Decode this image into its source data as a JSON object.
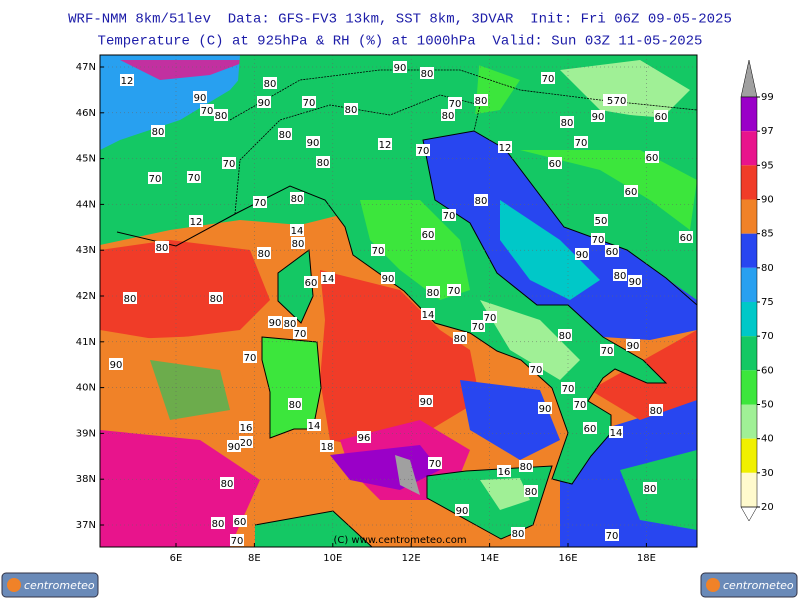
{
  "header": {
    "line1": "WRF-NMM 8km/51lev  Data: GFS-FV3 13km, SST 8km, 3DVAR  Init: Fri 06Z 09-05-2025",
    "line2": "Temperature (C) at 925hPa & RH (%) at 1000hPa  Valid: Sun 03Z 11-05-2025"
  },
  "map": {
    "lat_ticks": [
      {
        "value": 47,
        "label": "47N"
      },
      {
        "value": 46,
        "label": "46N"
      },
      {
        "value": 45,
        "label": "45N"
      },
      {
        "value": 44,
        "label": "44N"
      },
      {
        "value": 43,
        "label": "43N"
      },
      {
        "value": 42,
        "label": "42N"
      },
      {
        "value": 41,
        "label": "41N"
      },
      {
        "value": 40,
        "label": "40N"
      },
      {
        "value": 39,
        "label": "39N"
      },
      {
        "value": 38,
        "label": "38N"
      },
      {
        "value": 37,
        "label": "37N"
      }
    ],
    "lon_ticks": [
      {
        "value": 6,
        "label": "6E"
      },
      {
        "value": 8,
        "label": "8E"
      },
      {
        "value": 10,
        "label": "10E"
      },
      {
        "value": 12,
        "label": "12E"
      },
      {
        "value": 14,
        "label": "14E"
      },
      {
        "value": 16,
        "label": "16E"
      },
      {
        "value": 18,
        "label": "18E"
      }
    ],
    "contour_labels": [
      "12",
      "80",
      "90",
      "80",
      "70",
      "90",
      "70",
      "80",
      "90",
      "70",
      "80",
      "70",
      "80",
      "5",
      "70",
      "80",
      "80",
      "90",
      "12",
      "80",
      "80",
      "90",
      "60",
      "70",
      "12",
      "70",
      "80",
      "60",
      "70",
      "60",
      "70",
      "70",
      "80",
      "70",
      "80",
      "60",
      "12",
      "70",
      "50",
      "14",
      "60",
      "80",
      "80",
      "70",
      "70",
      "60",
      "90",
      "60",
      "80",
      "14",
      "60",
      "90",
      "80",
      "90",
      "80",
      "80",
      "80",
      "70",
      "14",
      "90",
      "80",
      "70",
      "70",
      "70",
      "80",
      "80",
      "90",
      "70",
      "90",
      "70",
      "70",
      "70",
      "90",
      "80",
      "90",
      "70",
      "80",
      "16",
      "14",
      "60",
      "14",
      "20",
      "96",
      "90",
      "18",
      "70",
      "80",
      "16",
      "80",
      "80",
      "80",
      "80",
      "60",
      "90",
      "70",
      "80",
      "70"
    ],
    "watermark": "(C) www.centrometeo.com"
  },
  "colorbar": {
    "levels": [
      {
        "value": 99,
        "color": "#9a00c8"
      },
      {
        "value": 97,
        "color": "#e8148c"
      },
      {
        "value": 95,
        "color": "#f03c28"
      },
      {
        "value": 90,
        "color": "#f08228"
      },
      {
        "value": 85,
        "color": "#2846f0"
      },
      {
        "value": 80,
        "color": "#28a0f0"
      },
      {
        "value": 75,
        "color": "#00c8c8"
      },
      {
        "value": 70,
        "color": "#14c864"
      },
      {
        "value": 60,
        "color": "#3ce63c"
      },
      {
        "value": 50,
        "color": "#a0f096"
      },
      {
        "value": 40,
        "color": "#f0f000"
      },
      {
        "value": 30,
        "color": "#fffacd"
      },
      {
        "value": 20,
        "color": "#ffffff"
      }
    ],
    "over_color": "#a0a0a0"
  },
  "logos": [
    "centrometeo",
    "centrometeo"
  ]
}
